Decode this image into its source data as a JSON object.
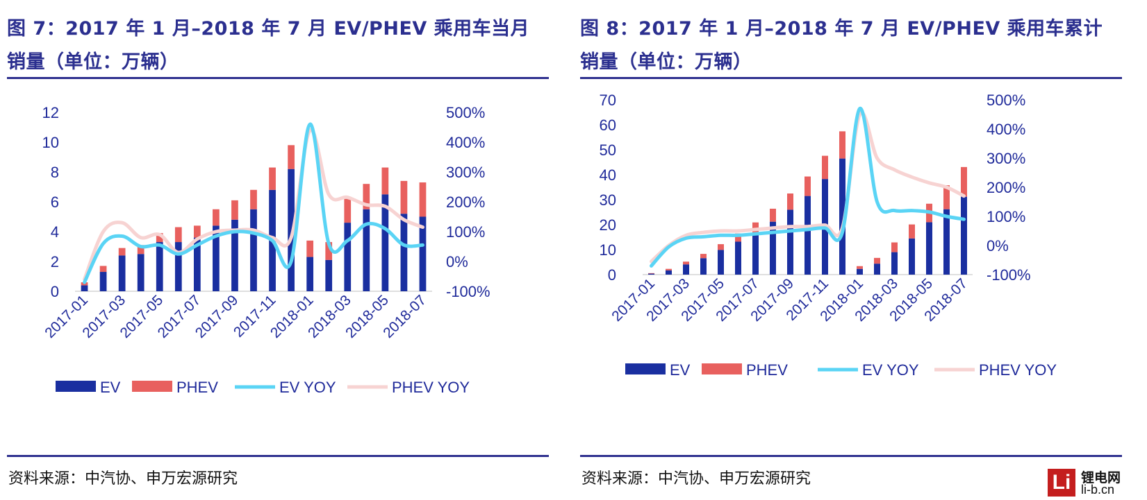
{
  "left": {
    "title": "图 7：2017 年 1 月–2018 年 7 月 EV/PHEV 乘用车当月销量（单位：万辆）",
    "source": "资料来源：中汽协、申万宏源研究"
  },
  "right": {
    "title": "图 8：2017 年 1 月–2018 年 7 月 EV/PHEV 乘用车累计销量（单位：万辆）",
    "source": "资料来源：中汽协、申万宏源研究"
  },
  "brand": {
    "logo_letter": "Li",
    "cn": "锂电网",
    "en": "li-b.cn"
  },
  "chart_data": [
    {
      "type": "bar",
      "stacked": true,
      "secondary_axis_lines": true,
      "categories": [
        "2017-01",
        "2017-02",
        "2017-03",
        "2017-04",
        "2017-05",
        "2017-06",
        "2017-07",
        "2017-08",
        "2017-09",
        "2017-10",
        "2017-11",
        "2017-12",
        "2018-01",
        "2018-02",
        "2018-03",
        "2018-04",
        "2018-05",
        "2018-06",
        "2018-07"
      ],
      "x_tick_labels": [
        "2017-01",
        "2017-03",
        "2017-05",
        "2017-07",
        "2017-09",
        "2017-11",
        "2018-01",
        "2018-03",
        "2018-05",
        "2018-07"
      ],
      "series": [
        {
          "name": "EV",
          "kind": "bar",
          "axis": "left",
          "color": "#1a2fa0",
          "values": [
            0.4,
            1.3,
            2.4,
            2.5,
            3.3,
            3.3,
            3.6,
            4.4,
            4.8,
            5.5,
            6.8,
            8.2,
            2.3,
            2.1,
            4.6,
            5.5,
            6.5,
            5.2,
            5.0
          ]
        },
        {
          "name": "PHEV",
          "kind": "bar",
          "axis": "left",
          "color": "#e8605e",
          "values": [
            0.2,
            0.4,
            0.5,
            0.6,
            0.6,
            1.0,
            0.8,
            1.1,
            1.3,
            1.3,
            1.5,
            1.6,
            1.1,
            1.2,
            1.6,
            1.7,
            1.8,
            2.2,
            2.3
          ]
        },
        {
          "name": "EV YOY",
          "kind": "line",
          "axis": "right",
          "color": "#5ad4f5",
          "values": [
            -70,
            60,
            85,
            50,
            55,
            25,
            55,
            85,
            100,
            95,
            70,
            0,
            460,
            60,
            70,
            125,
            110,
            55,
            55
          ]
        },
        {
          "name": "PHEV YOY",
          "kind": "line",
          "axis": "right",
          "color": "#f7d3d2",
          "values": [
            -60,
            100,
            130,
            80,
            90,
            30,
            75,
            100,
            105,
            105,
            80,
            80,
            440,
            225,
            215,
            190,
            185,
            140,
            115
          ]
        }
      ],
      "ylim_left": [
        0,
        12
      ],
      "yticks_left": [
        "0",
        "2",
        "4",
        "6",
        "8",
        "10",
        "12"
      ],
      "ylim_right": [
        -100,
        500
      ],
      "yticks_right": [
        "-100%",
        "0%",
        "100%",
        "200%",
        "300%",
        "400%",
        "500%"
      ],
      "legend_placement": "bottom"
    },
    {
      "type": "bar",
      "stacked": true,
      "secondary_axis_lines": true,
      "categories": [
        "2017-01",
        "2017-02",
        "2017-03",
        "2017-04",
        "2017-05",
        "2017-06",
        "2017-07",
        "2017-08",
        "2017-09",
        "2017-10",
        "2017-11",
        "2017-12",
        "2018-01",
        "2018-02",
        "2018-03",
        "2018-04",
        "2018-05",
        "2018-06",
        "2018-07"
      ],
      "x_tick_labels": [
        "2017-01",
        "2017-03",
        "2017-05",
        "2017-07",
        "2017-09",
        "2017-11",
        "2018-01",
        "2018-03",
        "2018-05",
        "2018-07"
      ],
      "series": [
        {
          "name": "EV",
          "kind": "bar",
          "axis": "left",
          "color": "#1a2fa0",
          "values": [
            0.4,
            1.7,
            4.1,
            6.6,
            9.9,
            13.2,
            16.8,
            21.2,
            26.0,
            31.5,
            38.3,
            46.5,
            2.3,
            4.4,
            9.0,
            14.5,
            21.0,
            26.2,
            31.2
          ]
        },
        {
          "name": "PHEV",
          "kind": "bar",
          "axis": "left",
          "color": "#e8605e",
          "values": [
            0.2,
            0.6,
            1.1,
            1.7,
            2.3,
            3.3,
            4.1,
            5.2,
            6.5,
            7.8,
            9.3,
            10.9,
            1.1,
            2.3,
            3.9,
            5.6,
            7.4,
            9.6,
            11.9
          ]
        },
        {
          "name": "EV YOY",
          "kind": "line",
          "axis": "right",
          "color": "#5ad4f5",
          "values": [
            -70,
            -5,
            25,
            30,
            35,
            35,
            40,
            45,
            50,
            55,
            60,
            45,
            470,
            150,
            120,
            120,
            115,
            100,
            90
          ]
        },
        {
          "name": "PHEV YOY",
          "kind": "line",
          "axis": "right",
          "color": "#f7d3d2",
          "values": [
            -55,
            0,
            35,
            45,
            50,
            50,
            55,
            60,
            65,
            65,
            70,
            60,
            450,
            300,
            260,
            235,
            215,
            200,
            170
          ]
        }
      ],
      "ylim_left": [
        0,
        70
      ],
      "yticks_left": [
        "0",
        "10",
        "20",
        "30",
        "40",
        "50",
        "60",
        "70"
      ],
      "ylim_right": [
        -100,
        500
      ],
      "yticks_right": [
        "-100%",
        "0%",
        "100%",
        "200%",
        "300%",
        "400%",
        "500%"
      ],
      "legend_placement": "bottom"
    }
  ]
}
